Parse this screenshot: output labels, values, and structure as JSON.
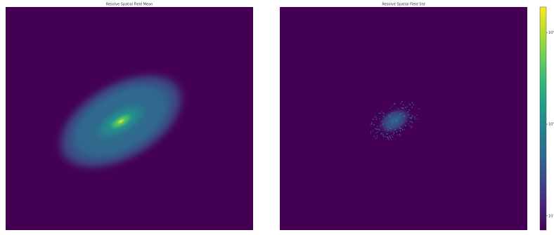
{
  "chart_data": [
    {
      "type": "image",
      "title": "Resolve Spatial Field Mean"
    },
    {
      "type": "image",
      "title": "Resolve Spatial Field Std"
    },
    {
      "type": "colorbar",
      "colormap": "viridis",
      "log_scale": true,
      "ylim": [
        0.07,
        19
      ],
      "yticks": [
        {
          "value": 10,
          "label": "10¹"
        },
        {
          "value": 1,
          "label": "10⁰"
        },
        {
          "value": 0.1,
          "label": "10⁻¹"
        }
      ]
    }
  ]
}
